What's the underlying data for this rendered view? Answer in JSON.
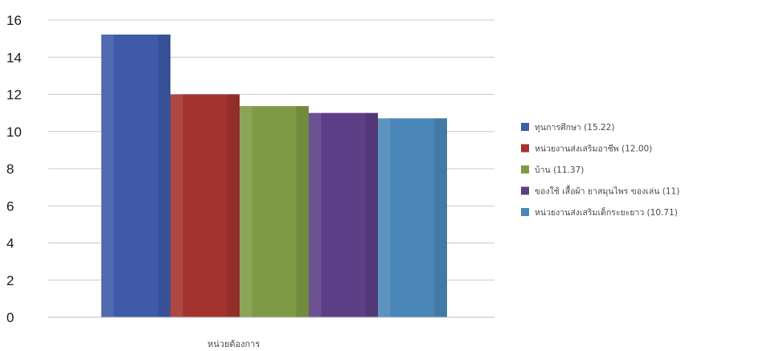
{
  "chart_data": {
    "type": "bar",
    "title": "",
    "xlabel": "หน่วยต้องการ",
    "ylabel": "",
    "ylim": [
      0,
      16
    ],
    "yticks": [
      0,
      2,
      4,
      6,
      8,
      10,
      12,
      14,
      16
    ],
    "grid": "major-y",
    "legend_position": "right",
    "categories": [
      "หน่วยต้องการ"
    ],
    "series": [
      {
        "name": "ทุนการศึกษา (15.22)",
        "values": [
          15.22
        ],
        "color": "#3e5aa8"
      },
      {
        "name": "หน่วยงานส่งเสริมอาชีพ (12.00)",
        "values": [
          12.0
        ],
        "color": "#a3332f"
      },
      {
        "name": "บ้าน (11.37)",
        "values": [
          11.37
        ],
        "color": "#7f9a44"
      },
      {
        "name": "ของใช้ เสื้อผ้า ยาสมุนไพร ของเล่น (11)",
        "values": [
          11.0
        ],
        "color": "#5c3f86"
      },
      {
        "name": "หน่วยงานส่งเสริมเด็กระยะยาว (10.71)",
        "values": [
          10.71
        ],
        "color": "#4a87b8"
      }
    ]
  }
}
